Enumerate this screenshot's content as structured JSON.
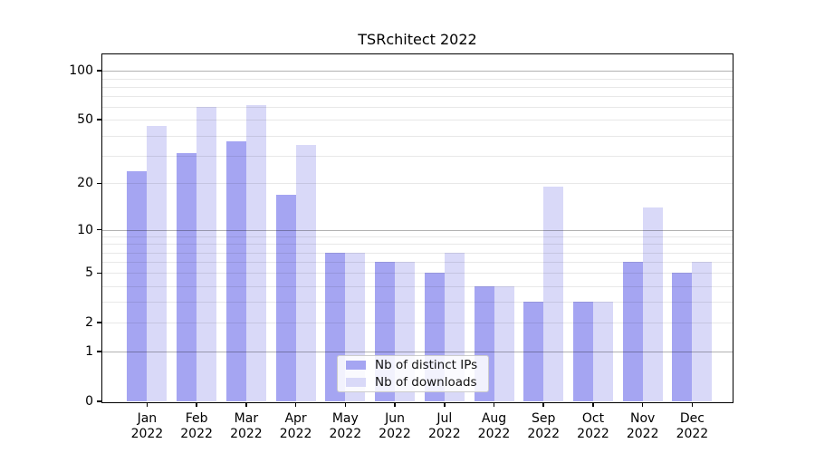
{
  "chart_data": {
    "type": "bar",
    "title": "TSRchitect 2022",
    "categories": [
      "Jan",
      "Feb",
      "Mar",
      "Apr",
      "May",
      "Jun",
      "Jul",
      "Aug",
      "Sep",
      "Oct",
      "Nov",
      "Dec"
    ],
    "year_label": "2022",
    "series": [
      {
        "name": "Nb of distinct IPs",
        "color": "#a5a5f2",
        "values": [
          24,
          31,
          37,
          17,
          7,
          6,
          5,
          4,
          3,
          3,
          6,
          5
        ]
      },
      {
        "name": "Nb of downloads",
        "color": "#d9d9f8",
        "values": [
          46,
          60,
          62,
          35,
          7,
          6,
          7,
          4,
          19,
          3,
          14,
          6
        ]
      }
    ],
    "yscale": "log1p",
    "y_ticks": [
      0,
      1,
      2,
      5,
      10,
      20,
      50,
      100
    ],
    "y_max": 126.2,
    "major_gridlines": [
      1,
      10,
      100
    ],
    "minor_gridlines": [
      2,
      3,
      4,
      5,
      6,
      7,
      8,
      9,
      20,
      30,
      40,
      50,
      60,
      70,
      80,
      90
    ],
    "legend_position": "lower-center",
    "grid": true,
    "xlabel": "",
    "ylabel": ""
  },
  "colors": {
    "axis": "#000000",
    "bar_distinct_ips": "#a5a5f2",
    "bar_downloads": "#d9d9f8",
    "legend_border": "#cccccc"
  }
}
